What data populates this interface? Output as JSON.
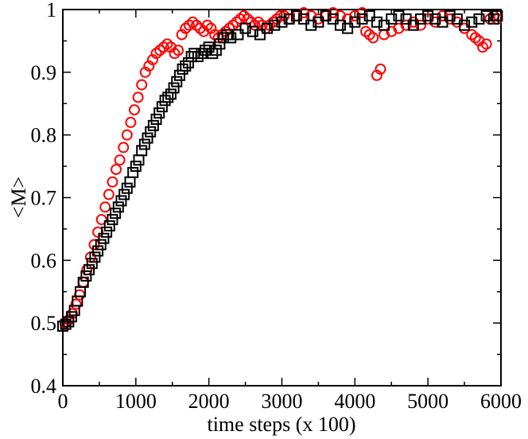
{
  "chart_data": {
    "type": "scatter",
    "title": "",
    "xlabel": "time steps (x 100)",
    "ylabel": "<M>",
    "xlim": [
      0,
      6000
    ],
    "ylim": [
      0.4,
      1.0
    ],
    "x_ticks": [
      0,
      1000,
      2000,
      3000,
      4000,
      5000,
      6000
    ],
    "y_ticks": [
      0.4,
      0.5,
      0.6,
      0.7,
      0.8,
      0.9,
      1.0
    ],
    "x_tick_labels": [
      "0",
      "1000",
      "2000",
      "3000",
      "4000",
      "5000",
      "6000"
    ],
    "y_tick_labels": [
      "0.4",
      "0.5",
      "0.6",
      "0.7",
      "0.8",
      "0.9",
      "1"
    ],
    "grid": false,
    "legend": null,
    "series": [
      {
        "name": "circles",
        "marker": "circle",
        "color": "#ff0000",
        "x": [
          30,
          80,
          130,
          180,
          230,
          280,
          330,
          380,
          430,
          480,
          530,
          580,
          630,
          680,
          730,
          780,
          830,
          880,
          930,
          980,
          1030,
          1080,
          1130,
          1180,
          1230,
          1280,
          1330,
          1380,
          1430,
          1480,
          1530,
          1580,
          1630,
          1680,
          1730,
          1780,
          1830,
          1880,
          1930,
          1980,
          2030,
          2080,
          2130,
          2180,
          2230,
          2280,
          2330,
          2380,
          2430,
          2480,
          2530,
          2580,
          2630,
          2680,
          2730,
          2780,
          2830,
          2880,
          2930,
          2980,
          3030,
          3100,
          3200,
          3300,
          3400,
          3500,
          3600,
          3700,
          3800,
          3900,
          4000,
          4100,
          4150,
          4200,
          4250,
          4300,
          4350,
          4400,
          4500,
          4600,
          4700,
          4800,
          4900,
          5000,
          5100,
          5200,
          5300,
          5400,
          5500,
          5600,
          5650,
          5700,
          5750,
          5800,
          5850,
          5900,
          5950
        ],
        "y": [
          0.5,
          0.505,
          0.515,
          0.53,
          0.545,
          0.565,
          0.585,
          0.605,
          0.625,
          0.645,
          0.665,
          0.685,
          0.705,
          0.725,
          0.745,
          0.76,
          0.78,
          0.8,
          0.82,
          0.84,
          0.86,
          0.88,
          0.9,
          0.91,
          0.92,
          0.93,
          0.935,
          0.94,
          0.945,
          0.94,
          0.93,
          0.935,
          0.96,
          0.97,
          0.975,
          0.98,
          0.975,
          0.97,
          0.965,
          0.975,
          0.97,
          0.96,
          0.955,
          0.96,
          0.965,
          0.97,
          0.975,
          0.98,
          0.985,
          0.99,
          0.985,
          0.98,
          0.975,
          0.98,
          0.975,
          0.97,
          0.975,
          0.98,
          0.985,
          0.99,
          0.99,
          0.985,
          0.99,
          0.995,
          0.99,
          0.985,
          0.99,
          0.995,
          0.99,
          0.985,
          0.99,
          0.995,
          0.965,
          0.96,
          0.955,
          0.895,
          0.905,
          0.96,
          0.965,
          0.97,
          0.975,
          0.98,
          0.975,
          0.985,
          0.98,
          0.99,
          0.985,
          0.98,
          0.97,
          0.96,
          0.955,
          0.95,
          0.94,
          0.945,
          0.985,
          0.99,
          0.985
        ]
      },
      {
        "name": "squares",
        "marker": "square",
        "color": "#000000",
        "x": [
          0,
          40,
          80,
          120,
          160,
          200,
          240,
          280,
          320,
          360,
          400,
          440,
          480,
          520,
          560,
          600,
          640,
          680,
          720,
          760,
          800,
          840,
          880,
          920,
          960,
          1000,
          1040,
          1080,
          1120,
          1160,
          1200,
          1240,
          1280,
          1320,
          1360,
          1400,
          1440,
          1480,
          1520,
          1560,
          1600,
          1640,
          1680,
          1720,
          1760,
          1800,
          1850,
          1900,
          1950,
          2000,
          2050,
          2100,
          2150,
          2200,
          2250,
          2300,
          2400,
          2500,
          2600,
          2700,
          2800,
          2900,
          3000,
          3100,
          3200,
          3300,
          3400,
          3500,
          3600,
          3700,
          3800,
          3900,
          4000,
          4100,
          4200,
          4300,
          4400,
          4500,
          4600,
          4700,
          4800,
          4900,
          5000,
          5100,
          5200,
          5300,
          5400,
          5500,
          5600,
          5700,
          5800,
          5900,
          5950
        ],
        "y": [
          0.495,
          0.498,
          0.502,
          0.51,
          0.52,
          0.535,
          0.55,
          0.565,
          0.575,
          0.585,
          0.595,
          0.605,
          0.615,
          0.625,
          0.635,
          0.645,
          0.655,
          0.665,
          0.675,
          0.685,
          0.695,
          0.705,
          0.715,
          0.725,
          0.74,
          0.75,
          0.76,
          0.775,
          0.785,
          0.795,
          0.805,
          0.815,
          0.825,
          0.835,
          0.845,
          0.855,
          0.86,
          0.865,
          0.875,
          0.885,
          0.895,
          0.905,
          0.91,
          0.915,
          0.925,
          0.93,
          0.925,
          0.93,
          0.935,
          0.94,
          0.93,
          0.935,
          0.945,
          0.955,
          0.96,
          0.955,
          0.96,
          0.97,
          0.965,
          0.96,
          0.97,
          0.975,
          0.98,
          0.985,
          0.99,
          0.985,
          0.975,
          0.98,
          0.99,
          0.985,
          0.975,
          0.97,
          0.98,
          0.985,
          0.99,
          0.98,
          0.975,
          0.985,
          0.99,
          0.985,
          0.975,
          0.985,
          0.99,
          0.985,
          0.98,
          0.99,
          0.985,
          0.975,
          0.98,
          0.985,
          0.99,
          0.985,
          0.99
        ]
      }
    ]
  }
}
